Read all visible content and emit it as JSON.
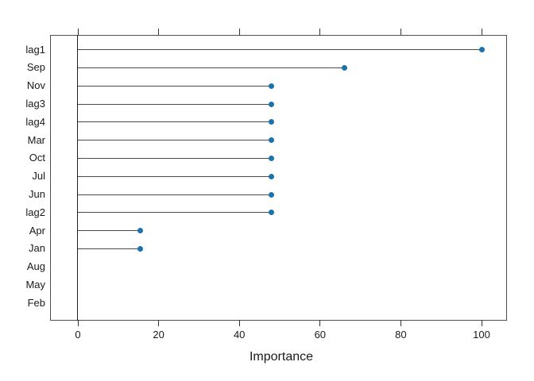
{
  "chart_data": {
    "type": "bar",
    "variant": "horizontal-lollipop-dotplot",
    "title": "",
    "xlabel": "Importance",
    "ylabel": "",
    "categories": [
      "lag1",
      "Sep",
      "Nov",
      "lag3",
      "lag4",
      "Mar",
      "Oct",
      "Jul",
      "Jun",
      "lag2",
      "Apr",
      "Jan",
      "Aug",
      "May",
      "Feb"
    ],
    "values": [
      100,
      66,
      48,
      48,
      48,
      48,
      48,
      48,
      48,
      48,
      15.5,
      15.5,
      0,
      0,
      0
    ],
    "xticks": [
      0,
      20,
      40,
      60,
      80,
      100
    ],
    "xlim": [
      -7,
      106
    ],
    "grid": false,
    "legend_position": "none",
    "notes": "zero-value categories (Aug, May, Feb) drawn with no needle or dot; ticks mirrored on top axis without labels",
    "point_color": "#1b73ae",
    "needle_color": "#4a4a4a",
    "frame_color": "#4f4f4f",
    "baseline_color": "#1f1f1f",
    "text_color": "#1a1a1a"
  }
}
